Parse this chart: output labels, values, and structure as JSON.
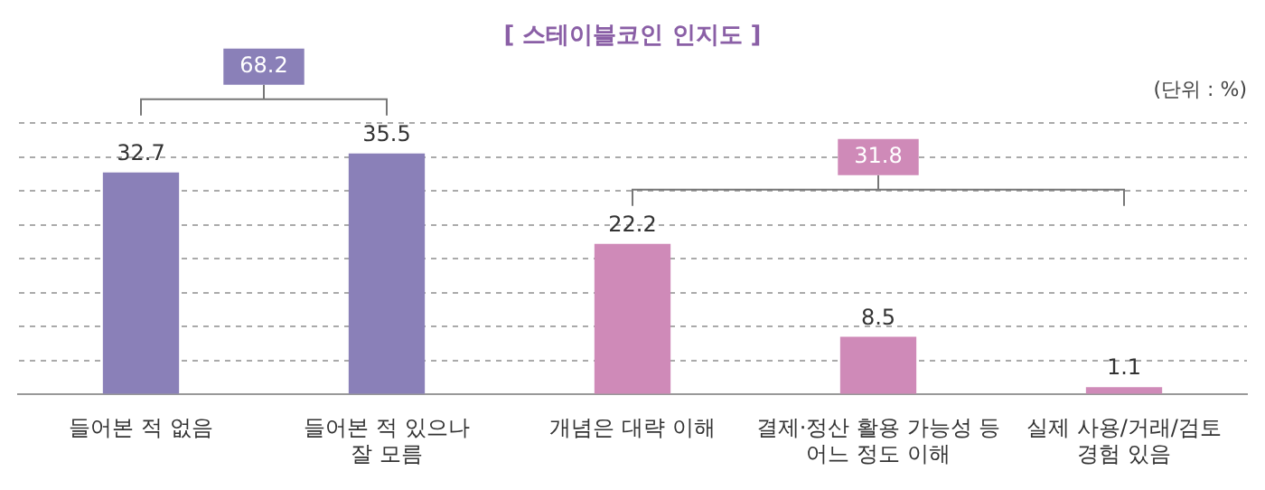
{
  "chart_data": {
    "type": "bar",
    "title": "[ 스테이블코인 인지도 ]",
    "categories": [
      "들어본 적 없음",
      "들어본 적 있으나\n잘 모름",
      "개념은 대략 이해",
      "결제·정산 활용 가능성 등\n어느 정도 이해",
      "실제 사용/거래/검토\n경험 있음"
    ],
    "values": [
      32.7,
      35.5,
      22.2,
      8.5,
      1.1
    ],
    "colors": [
      "#8a80b8",
      "#8a80b8",
      "#cf8ab8",
      "#cf8ab8",
      "#cf8ab8"
    ],
    "tick_labels": "x",
    "grid": "y",
    "data_labels": true,
    "legend": false,
    "annotations": [
      "(단위 : %)",
      "68.2",
      "31.8"
    ]
  }
}
